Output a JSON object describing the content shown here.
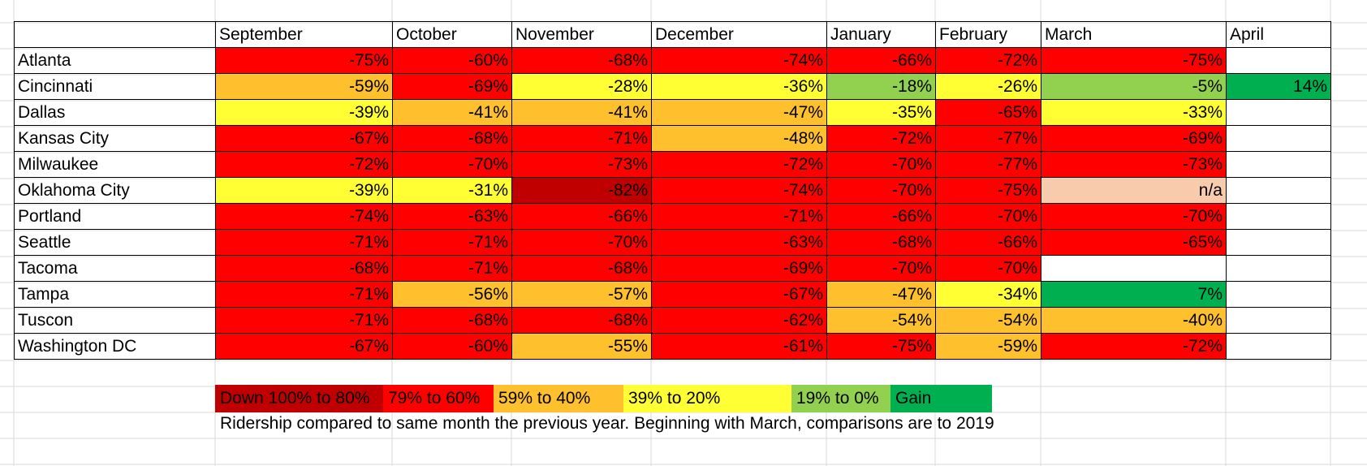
{
  "colors": {
    "down_100_80": "#c00000",
    "down_79_60": "#ff0000",
    "down_59_40": "#ffc02e",
    "down_39_20": "#ffff33",
    "down_19_0": "#92d050",
    "gain": "#00b050",
    "na": "#f8cbad",
    "empty": "#ffffff"
  },
  "table": {
    "months": [
      "September",
      "October",
      "November",
      "December",
      "January",
      "February",
      "March",
      "April"
    ],
    "rows": [
      {
        "city": "Atlanta",
        "values": [
          "-75%",
          "-60%",
          "-68%",
          "-74%",
          "-66%",
          "-72%",
          "-75%",
          ""
        ],
        "bands": [
          "down_79_60",
          "down_79_60",
          "down_79_60",
          "down_79_60",
          "down_79_60",
          "down_79_60",
          "down_79_60",
          "empty"
        ]
      },
      {
        "city": "Cincinnati",
        "values": [
          "-59%",
          "-69%",
          "-28%",
          "-36%",
          "-18%",
          "-26%",
          "-5%",
          "14%"
        ],
        "bands": [
          "down_59_40",
          "down_79_60",
          "down_39_20",
          "down_39_20",
          "down_19_0",
          "down_39_20",
          "down_19_0",
          "gain"
        ]
      },
      {
        "city": "Dallas",
        "values": [
          "-39%",
          "-41%",
          "-41%",
          "-47%",
          "-35%",
          "-65%",
          "-33%",
          ""
        ],
        "bands": [
          "down_39_20",
          "down_59_40",
          "down_59_40",
          "down_59_40",
          "down_39_20",
          "down_79_60",
          "down_39_20",
          "empty"
        ]
      },
      {
        "city": "Kansas City",
        "values": [
          "-67%",
          "-68%",
          "-71%",
          "-48%",
          "-72%",
          "-77%",
          "-69%",
          ""
        ],
        "bands": [
          "down_79_60",
          "down_79_60",
          "down_79_60",
          "down_59_40",
          "down_79_60",
          "down_79_60",
          "down_79_60",
          "empty"
        ]
      },
      {
        "city": "Milwaukee",
        "values": [
          "-72%",
          "-70%",
          "-73%",
          "-72%",
          "-70%",
          "-77%",
          "-73%",
          ""
        ],
        "bands": [
          "down_79_60",
          "down_79_60",
          "down_79_60",
          "down_79_60",
          "down_79_60",
          "down_79_60",
          "down_79_60",
          "empty"
        ]
      },
      {
        "city": "Oklahoma City",
        "values": [
          "-39%",
          "-31%",
          "-82%",
          "-74%",
          "-70%",
          "-75%",
          "n/a",
          ""
        ],
        "bands": [
          "down_39_20",
          "down_39_20",
          "down_100_80",
          "down_79_60",
          "down_79_60",
          "down_79_60",
          "na",
          "empty"
        ]
      },
      {
        "city": "Portland",
        "values": [
          "-74%",
          "-63%",
          "-66%",
          "-71%",
          "-66%",
          "-70%",
          "-70%",
          ""
        ],
        "bands": [
          "down_79_60",
          "down_79_60",
          "down_79_60",
          "down_79_60",
          "down_79_60",
          "down_79_60",
          "down_79_60",
          "empty"
        ]
      },
      {
        "city": "Seattle",
        "values": [
          "-71%",
          "-71%",
          "-70%",
          "-63%",
          "-68%",
          "-66%",
          "-65%",
          ""
        ],
        "bands": [
          "down_79_60",
          "down_79_60",
          "down_79_60",
          "down_79_60",
          "down_79_60",
          "down_79_60",
          "down_79_60",
          "empty"
        ]
      },
      {
        "city": "Tacoma",
        "values": [
          "-68%",
          "-71%",
          "-68%",
          "-69%",
          "-70%",
          "-70%",
          "",
          ""
        ],
        "bands": [
          "down_79_60",
          "down_79_60",
          "down_79_60",
          "down_79_60",
          "down_79_60",
          "down_79_60",
          "empty",
          "empty"
        ]
      },
      {
        "city": "Tampa",
        "values": [
          "-71%",
          "-56%",
          "-57%",
          "-67%",
          "-47%",
          "-34%",
          "7%",
          ""
        ],
        "bands": [
          "down_79_60",
          "down_59_40",
          "down_59_40",
          "down_79_60",
          "down_59_40",
          "down_39_20",
          "gain",
          "empty"
        ]
      },
      {
        "city": "Tuscon",
        "values": [
          "-71%",
          "-68%",
          "-68%",
          "-62%",
          "-54%",
          "-54%",
          "-40%",
          ""
        ],
        "bands": [
          "down_79_60",
          "down_79_60",
          "down_79_60",
          "down_79_60",
          "down_59_40",
          "down_59_40",
          "down_59_40",
          "empty"
        ]
      },
      {
        "city": "Washington DC",
        "values": [
          "-67%",
          "-60%",
          "-55%",
          "-61%",
          "-75%",
          "-59%",
          "-72%",
          ""
        ],
        "bands": [
          "down_79_60",
          "down_79_60",
          "down_59_40",
          "down_79_60",
          "down_79_60",
          "down_59_40",
          "down_79_60",
          "empty"
        ]
      }
    ]
  },
  "legend": [
    {
      "label": "Down 100% to 80%",
      "band": "down_100_80"
    },
    {
      "label": "79% to 60%",
      "band": "down_79_60"
    },
    {
      "label": "59% to 40%",
      "band": "down_59_40"
    },
    {
      "label": "39% to 20%",
      "band": "down_39_20"
    },
    {
      "label": "19% to 0%",
      "band": "down_19_0"
    },
    {
      "label": "Gain",
      "band": "gain"
    }
  ],
  "note": "Ridership compared to same month the previous year. Beginning with March, comparisons are to 2019"
}
